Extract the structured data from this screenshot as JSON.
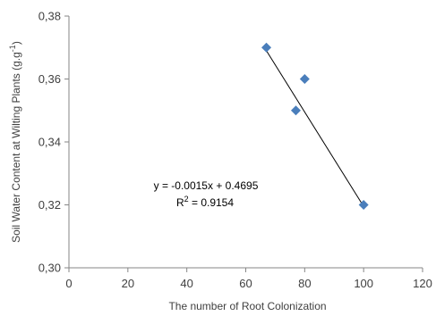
{
  "chart_data": {
    "type": "scatter",
    "title": "",
    "xlabel": "The number of Root Colonization",
    "ylabel": "Soil Water Content at Wilting Plants (g.g",
    "ylabel_superscript": "-1",
    "ylabel_suffix": ")",
    "xlim": [
      0,
      120
    ],
    "ylim": [
      0.3,
      0.38
    ],
    "x_ticks": [
      0,
      20,
      40,
      60,
      80,
      100,
      120
    ],
    "x_tick_labels": [
      "0",
      "20",
      "40",
      "60",
      "80",
      "100",
      "120"
    ],
    "y_ticks": [
      0.3,
      0.32,
      0.34,
      0.36,
      0.38
    ],
    "y_tick_labels": [
      "0,30",
      "0,32",
      "0,34",
      "0,36",
      "0,38"
    ],
    "grid": false,
    "legend": "none",
    "series": [
      {
        "color": "#4a7ebb",
        "marker": "diamond",
        "points": [
          {
            "x": 67,
            "y": 0.37
          },
          {
            "x": 80,
            "y": 0.36
          },
          {
            "x": 77,
            "y": 0.35
          },
          {
            "x": 100,
            "y": 0.32
          }
        ]
      }
    ],
    "trendline": {
      "type": "linear",
      "slope": -0.0015,
      "intercept": 0.4695,
      "x_range": [
        67,
        100
      ],
      "color": "#000000",
      "equation_label": "y = -0.0015x + 0.4695",
      "r2_prefix": "R",
      "r2_superscript": "2",
      "r2_suffix": " = 0.9154"
    }
  }
}
